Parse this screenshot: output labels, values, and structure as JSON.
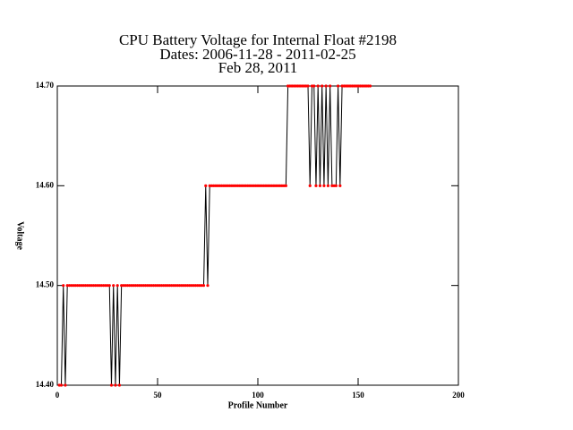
{
  "chart_data": {
    "type": "line",
    "title": [
      "CPU Battery Voltage for Internal Float #2198",
      "Dates:  2006-11-28 -  2011-02-25",
      "Feb 28, 2011"
    ],
    "xlabel": "Profile Number",
    "ylabel": "Voltage",
    "xlim": [
      0,
      200
    ],
    "xticks": [
      0,
      50,
      100,
      150,
      200
    ],
    "ylim": [
      14.4,
      14.7
    ],
    "yticks": [
      {
        "value": 14.4,
        "label": "14.40"
      },
      {
        "value": 14.5,
        "label": "14.50"
      },
      {
        "value": 14.6,
        "label": "14.60"
      },
      {
        "value": 14.7,
        "label": "14.70"
      }
    ],
    "line_color": "#000000",
    "marker_color": "#ff0000",
    "x": [
      1,
      2,
      3,
      4,
      5,
      6,
      7,
      8,
      9,
      10,
      11,
      12,
      13,
      14,
      15,
      16,
      17,
      18,
      19,
      20,
      21,
      22,
      23,
      24,
      25,
      26,
      27,
      28,
      29,
      30,
      31,
      32,
      33,
      34,
      35,
      36,
      37,
      38,
      39,
      40,
      41,
      42,
      43,
      44,
      45,
      46,
      47,
      48,
      49,
      50,
      51,
      52,
      53,
      54,
      55,
      56,
      57,
      58,
      59,
      60,
      61,
      62,
      63,
      64,
      65,
      66,
      67,
      68,
      69,
      70,
      71,
      72,
      73,
      74,
      75,
      76,
      77,
      78,
      79,
      80,
      81,
      82,
      83,
      84,
      85,
      86,
      87,
      88,
      89,
      90,
      91,
      92,
      93,
      94,
      95,
      96,
      97,
      98,
      99,
      100,
      101,
      102,
      103,
      104,
      105,
      106,
      107,
      108,
      109,
      110,
      111,
      112,
      113,
      114,
      115,
      116,
      117,
      118,
      119,
      120,
      121,
      122,
      123,
      124,
      125,
      126,
      127,
      128,
      129,
      130,
      131,
      132,
      133,
      134,
      135,
      136,
      137,
      138,
      139,
      140,
      141,
      142,
      143,
      144,
      145,
      146,
      147,
      148,
      149,
      150,
      151,
      152,
      153,
      154,
      155,
      156
    ],
    "values": [
      14.4,
      14.4,
      14.5,
      14.4,
      14.5,
      14.5,
      14.5,
      14.5,
      14.5,
      14.5,
      14.5,
      14.5,
      14.5,
      14.5,
      14.5,
      14.5,
      14.5,
      14.5,
      14.5,
      14.5,
      14.5,
      14.5,
      14.5,
      14.5,
      14.5,
      14.5,
      14.4,
      14.5,
      14.4,
      14.5,
      14.4,
      14.5,
      14.5,
      14.5,
      14.5,
      14.5,
      14.5,
      14.5,
      14.5,
      14.5,
      14.5,
      14.5,
      14.5,
      14.5,
      14.5,
      14.5,
      14.5,
      14.5,
      14.5,
      14.5,
      14.5,
      14.5,
      14.5,
      14.5,
      14.5,
      14.5,
      14.5,
      14.5,
      14.5,
      14.5,
      14.5,
      14.5,
      14.5,
      14.5,
      14.5,
      14.5,
      14.5,
      14.5,
      14.5,
      14.5,
      14.5,
      14.5,
      14.5,
      14.6,
      14.5,
      14.6,
      14.6,
      14.6,
      14.6,
      14.6,
      14.6,
      14.6,
      14.6,
      14.6,
      14.6,
      14.6,
      14.6,
      14.6,
      14.6,
      14.6,
      14.6,
      14.6,
      14.6,
      14.6,
      14.6,
      14.6,
      14.6,
      14.6,
      14.6,
      14.6,
      14.6,
      14.6,
      14.6,
      14.6,
      14.6,
      14.6,
      14.6,
      14.6,
      14.6,
      14.6,
      14.6,
      14.6,
      14.6,
      14.6,
      14.7,
      14.7,
      14.7,
      14.7,
      14.7,
      14.7,
      14.7,
      14.7,
      14.7,
      14.7,
      14.7,
      14.6,
      14.7,
      14.7,
      14.6,
      14.7,
      14.6,
      14.7,
      14.6,
      14.7,
      14.6,
      14.7,
      14.6,
      14.6,
      14.6,
      14.7,
      14.6,
      14.7,
      14.7,
      14.7,
      14.7,
      14.7,
      14.7,
      14.7,
      14.7,
      14.7,
      14.7,
      14.7,
      14.7,
      14.7,
      14.7,
      14.7
    ]
  }
}
